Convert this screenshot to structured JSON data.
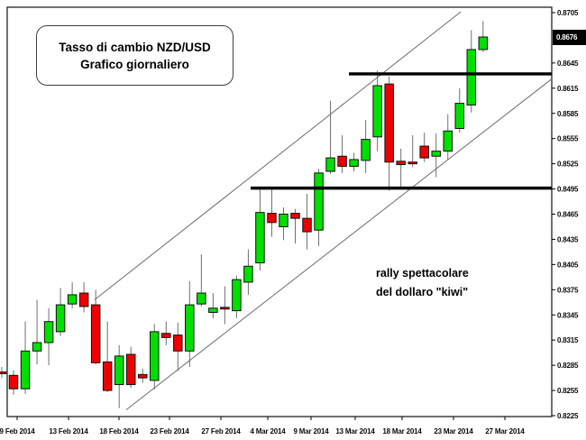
{
  "title_box": {
    "line1": "Tasso di cambio NZD/USD",
    "line2": "Grafico giornaliero"
  },
  "annotation": {
    "line1": "rally spettacolare",
    "line2": "del dollaro \"kiwi\""
  },
  "price_marker": {
    "value": "0.8676"
  },
  "colors": {
    "up": "#00df00",
    "down": "#ee0000",
    "wick": "#6e6e6e",
    "body_border": "#111111",
    "channel": "#6b6b6b",
    "level": "#000000",
    "axis_text": "#0a0a0a",
    "chart_border": "#222222",
    "badge_bg": "#000000",
    "badge_text": "#ffffff"
  },
  "chart_data": {
    "type": "candlestick",
    "title": "Tasso di cambio NZD/USD",
    "subtitle": "Grafico giornaliero",
    "y_axis": {
      "min": 0.8225,
      "max": 0.8705,
      "tick_step": 0.003,
      "tick_labels": [
        "0.8705",
        "0.8645",
        "0.8615",
        "0.8585",
        "0.8555",
        "0.8525",
        "0.8495",
        "0.8465",
        "0.8435",
        "0.8405",
        "0.8375",
        "0.8345",
        "0.8315",
        "0.8285",
        "0.8255",
        "0.8225"
      ]
    },
    "x_labels": [
      "9 Feb 2014",
      "13 Feb 2014",
      "18 Feb 2014",
      "23 Feb 2014",
      "27 Feb 2014",
      "4 Mar 2014",
      "9 Mar 2014",
      "13 Mar 2014",
      "18 Mar 2014",
      "23 Mar 2014",
      "27 Mar 2014"
    ],
    "current_price": 0.8676,
    "levels": {
      "resistance": 0.8632,
      "support": 0.8496
    },
    "channel_lines": {
      "upper": {
        "x1": 7.9,
        "p1": 0.8363,
        "x2": 39.1,
        "p2": 0.8706
      },
      "lower": {
        "x1": 10.6,
        "p1": 0.8232,
        "x2": 46.85,
        "p2": 0.8626
      }
    },
    "candles_format": [
      "open",
      "high",
      "low",
      "close"
    ],
    "candles": [
      [
        0.8277,
        0.8283,
        0.827,
        0.8275
      ],
      [
        0.8273,
        0.8279,
        0.825,
        0.8257
      ],
      [
        0.8257,
        0.8337,
        0.8251,
        0.8302
      ],
      [
        0.8302,
        0.8363,
        0.8286,
        0.8312
      ],
      [
        0.8312,
        0.8353,
        0.8285,
        0.8337
      ],
      [
        0.8325,
        0.8377,
        0.832,
        0.8357
      ],
      [
        0.8358,
        0.8384,
        0.8353,
        0.8369
      ],
      [
        0.8371,
        0.8384,
        0.8348,
        0.8355
      ],
      [
        0.8357,
        0.8375,
        0.8286,
        0.8288
      ],
      [
        0.8289,
        0.8337,
        0.8253,
        0.8255
      ],
      [
        0.8262,
        0.8309,
        0.8234,
        0.8296
      ],
      [
        0.8298,
        0.8307,
        0.8258,
        0.8262
      ],
      [
        0.8274,
        0.8281,
        0.8264,
        0.827
      ],
      [
        0.8267,
        0.8334,
        0.8256,
        0.8325
      ],
      [
        0.8323,
        0.8337,
        0.8309,
        0.8318
      ],
      [
        0.8321,
        0.8336,
        0.8278,
        0.8302
      ],
      [
        0.8302,
        0.8385,
        0.8283,
        0.8357
      ],
      [
        0.8358,
        0.8417,
        0.8355,
        0.8371
      ],
      [
        0.8348,
        0.8371,
        0.8341,
        0.8353
      ],
      [
        0.8354,
        0.8379,
        0.8334,
        0.8352
      ],
      [
        0.835,
        0.8392,
        0.8341,
        0.8387
      ],
      [
        0.8384,
        0.8423,
        0.8369,
        0.8403
      ],
      [
        0.8407,
        0.8496,
        0.8398,
        0.8467
      ],
      [
        0.8466,
        0.8497,
        0.8438,
        0.8455
      ],
      [
        0.845,
        0.8473,
        0.8434,
        0.8465
      ],
      [
        0.8466,
        0.8471,
        0.843,
        0.846
      ],
      [
        0.846,
        0.8489,
        0.8423,
        0.8444
      ],
      [
        0.8446,
        0.8519,
        0.8427,
        0.8514
      ],
      [
        0.8516,
        0.86,
        0.8513,
        0.8532
      ],
      [
        0.8534,
        0.8559,
        0.8514,
        0.8522
      ],
      [
        0.8522,
        0.8538,
        0.8516,
        0.853
      ],
      [
        0.8529,
        0.8577,
        0.8514,
        0.8554
      ],
      [
        0.8557,
        0.8636,
        0.854,
        0.8618
      ],
      [
        0.862,
        0.8629,
        0.8493,
        0.8527
      ],
      [
        0.8528,
        0.8543,
        0.8495,
        0.8524
      ],
      [
        0.8527,
        0.8559,
        0.8521,
        0.8525
      ],
      [
        0.8546,
        0.8562,
        0.8527,
        0.8532
      ],
      [
        0.8534,
        0.8561,
        0.8509,
        0.854
      ],
      [
        0.854,
        0.8584,
        0.853,
        0.8564
      ],
      [
        0.8567,
        0.8615,
        0.8562,
        0.8597
      ],
      [
        0.8595,
        0.8684,
        0.8586,
        0.8661
      ],
      [
        0.8661,
        0.8695,
        0.8658,
        0.8676
      ]
    ]
  }
}
